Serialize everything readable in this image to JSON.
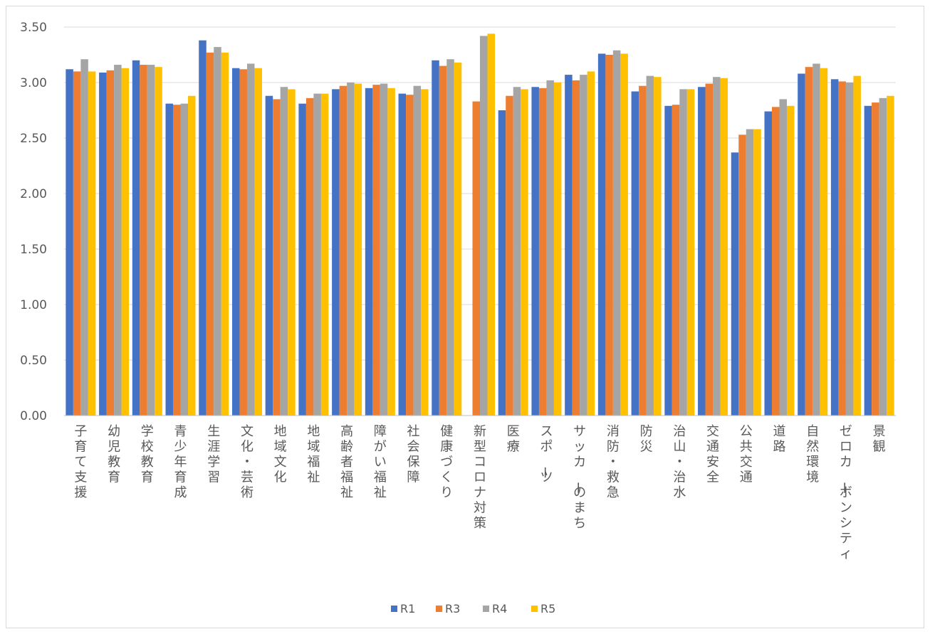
{
  "chart_data": {
    "type": "bar",
    "title": "",
    "xlabel": "",
    "ylabel": "",
    "ylim": [
      0,
      3.5
    ],
    "ytick_step": 0.5,
    "ytick_labels": [
      "0.00",
      "0.50",
      "1.00",
      "1.50",
      "2.00",
      "2.50",
      "3.00",
      "3.50"
    ],
    "grid": true,
    "legend_position": "bottom",
    "categories": [
      "子育て支援",
      "幼児教育",
      "学校教育",
      "青少年育成",
      "生涯学習",
      "文化・芸術",
      "地域文化",
      "地域福祉",
      "高齢者福祉",
      "障がい福祉",
      "社会保障",
      "健康づくり",
      "新型コロナ対策",
      "医療",
      "スポーツ",
      "サッカーのまち",
      "消防・救急",
      "防災",
      "治山・治水",
      "交通安全",
      "公共交通",
      "道路",
      "自然環境",
      "ゼロカーボンシティ",
      "景観"
    ],
    "series": [
      {
        "name": "R1",
        "color": "#4472c4",
        "values": [
          3.12,
          3.09,
          3.2,
          2.81,
          3.38,
          3.13,
          2.88,
          2.81,
          2.94,
          2.95,
          2.9,
          3.2,
          null,
          2.75,
          2.96,
          3.07,
          3.26,
          2.92,
          2.79,
          2.96,
          2.37,
          2.74,
          3.08,
          3.03,
          2.79
        ]
      },
      {
        "name": "R3",
        "color": "#ed7d31",
        "values": [
          3.1,
          3.11,
          3.16,
          2.8,
          3.27,
          3.12,
          2.85,
          2.86,
          2.97,
          2.98,
          2.89,
          3.15,
          2.83,
          2.88,
          2.95,
          3.02,
          3.25,
          2.97,
          2.8,
          2.99,
          2.53,
          2.78,
          3.14,
          3.01,
          2.82
        ]
      },
      {
        "name": "R4",
        "color": "#a5a5a5",
        "values": [
          3.21,
          3.16,
          3.16,
          2.81,
          3.32,
          3.17,
          2.96,
          2.9,
          3.0,
          2.99,
          2.97,
          3.21,
          3.42,
          2.96,
          3.02,
          3.07,
          3.29,
          3.06,
          2.94,
          3.05,
          2.58,
          2.85,
          3.17,
          3.0,
          2.86
        ]
      },
      {
        "name": "R5",
        "color": "#ffc000",
        "values": [
          3.1,
          3.13,
          3.14,
          2.88,
          3.27,
          3.13,
          2.94,
          2.9,
          2.99,
          2.95,
          2.94,
          3.18,
          3.44,
          2.94,
          3.0,
          3.1,
          3.26,
          3.05,
          2.94,
          3.04,
          2.58,
          2.79,
          3.13,
          3.06,
          2.88
        ]
      }
    ]
  }
}
